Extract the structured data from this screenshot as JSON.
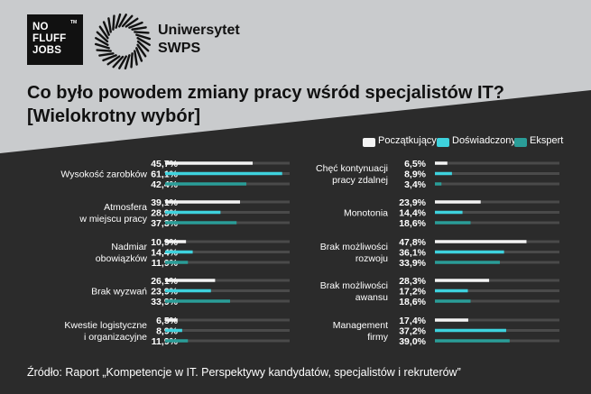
{
  "logos": {
    "nofluff": {
      "line1": "NO",
      "line2": "FLUFF",
      "line3": "JOBS",
      "tm": "TM"
    },
    "university": {
      "line1": "Uniwersytet",
      "line2": "SWPS"
    }
  },
  "title": {
    "line1": "Co było powodem zmiany pracy wśród specjalistów IT?",
    "line2": "[Wielokrotny wybór]"
  },
  "source": "Źródło: Raport „Kompetencje w IT. Perspektywy kandydatów, specjalistów i rekruterów”",
  "colors": {
    "background": "#c9cbcd",
    "panel": "#2b2b2b",
    "text": "#ffffff",
    "track": "#4a4a4a",
    "series": [
      "#f4f4f4",
      "#3ed2dd",
      "#2a9d98"
    ]
  },
  "chart_data": {
    "type": "bar",
    "orientation": "horizontal",
    "title": "Co było powodem zmiany pracy wśród specjalistów IT?",
    "unit": "%",
    "xlim": [
      0,
      65
    ],
    "legend": "top-right",
    "series_names": [
      "Początkujący",
      "Doświadczony",
      "Ekspert"
    ],
    "categories": [
      {
        "label": [
          "Wysokość zarobków"
        ],
        "values": [
          45.7,
          61.1,
          42.4
        ],
        "labels": [
          "45,7%",
          "61,1%",
          "42,4%"
        ]
      },
      {
        "label": [
          "Atmosfera",
          "w miejscu pracy"
        ],
        "values": [
          39.1,
          28.9,
          37.3
        ],
        "labels": [
          "39,1%",
          "28,9%",
          "37,3%"
        ]
      },
      {
        "label": [
          "Nadmiar",
          "obowiązków"
        ],
        "values": [
          10.9,
          14.4,
          11.9
        ],
        "labels": [
          "10,9%",
          "14,4%",
          "11,9%"
        ]
      },
      {
        "label": [
          "Brak wyzwań"
        ],
        "values": [
          26.1,
          23.9,
          33.9
        ],
        "labels": [
          "26,1%",
          "23,9%",
          "33,9%"
        ]
      },
      {
        "label": [
          "Kwestie logistyczne",
          "i organizacyjne"
        ],
        "values": [
          6.5,
          8.9,
          11.9
        ],
        "labels": [
          "6,5%",
          "8,9%",
          "11,9%"
        ]
      },
      {
        "label": [
          "Chęć kontynuacji",
          "pracy zdalnej"
        ],
        "values": [
          6.5,
          8.9,
          3.4
        ],
        "labels": [
          "6,5%",
          "8,9%",
          "3,4%"
        ]
      },
      {
        "label": [
          "Monotonia"
        ],
        "values": [
          23.9,
          14.4,
          18.6
        ],
        "labels": [
          "23,9%",
          "14,4%",
          "18,6%"
        ]
      },
      {
        "label": [
          "Brak możliwości",
          "rozwoju"
        ],
        "values": [
          47.8,
          36.1,
          33.9
        ],
        "labels": [
          "47,8%",
          "36,1%",
          "33,9%"
        ]
      },
      {
        "label": [
          "Brak możliwości",
          "awansu"
        ],
        "values": [
          28.3,
          17.2,
          18.6
        ],
        "labels": [
          "28,3%",
          "17,2%",
          "18,6%"
        ]
      },
      {
        "label": [
          "Management",
          "firmy"
        ],
        "values": [
          17.4,
          37.2,
          39.0
        ],
        "labels": [
          "17,4%",
          "37,2%",
          "39,0%"
        ]
      }
    ]
  }
}
